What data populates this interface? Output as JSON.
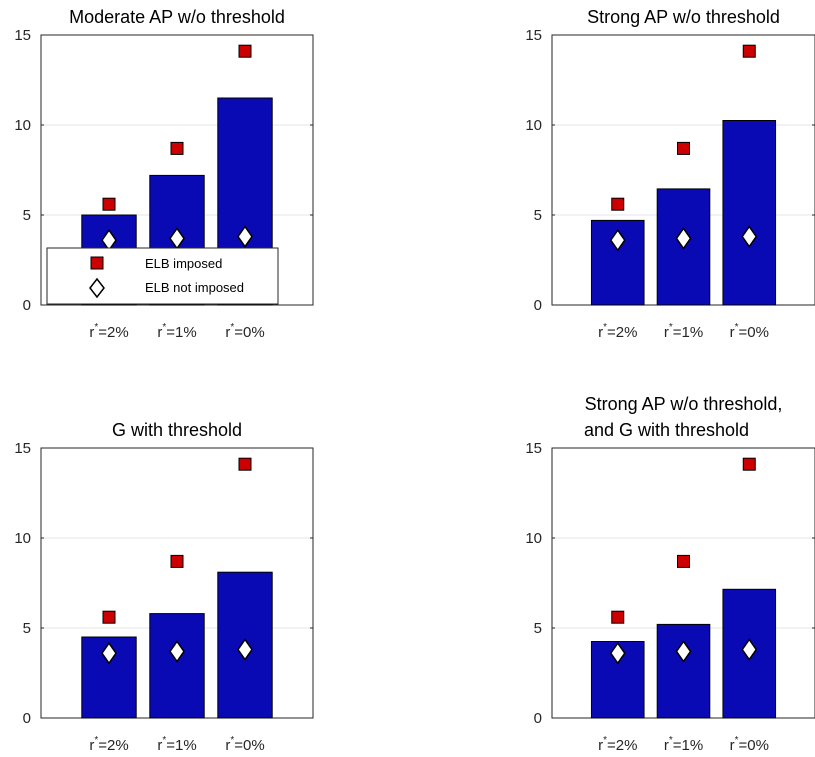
{
  "colors": {
    "bar_fill": "#0a0ab4",
    "bar_edge": "#000000",
    "square_fill": "#cc0000",
    "diamond_fill": "#ffffff",
    "grid": "#e6e6e6",
    "axis": "#262626"
  },
  "legend": {
    "items": [
      "ELB imposed",
      "ELB not imposed"
    ],
    "placement": "bottom-left of top-left panel"
  },
  "chart_data": [
    {
      "type": "bar",
      "title": "Moderate AP w/o threshold",
      "title_line2": "",
      "categories": [
        "r*=2%",
        "r*=1%",
        "r*=0%"
      ],
      "values": [
        5.0,
        7.2,
        11.5
      ],
      "markers": {
        "ELB imposed": [
          5.6,
          8.7,
          14.1
        ],
        "ELB not imposed": [
          3.6,
          3.7,
          3.8
        ]
      },
      "ylim": [
        0,
        15
      ],
      "yticks": [
        "0",
        "5",
        "10",
        "15"
      ],
      "grid": true
    },
    {
      "type": "bar",
      "title": "Strong AP w/o threshold",
      "title_line2": "",
      "categories": [
        "r*=2%",
        "r*=1%",
        "r*=0%"
      ],
      "values": [
        4.7,
        6.45,
        10.25
      ],
      "markers": {
        "ELB imposed": [
          5.6,
          8.7,
          14.1
        ],
        "ELB not imposed": [
          3.6,
          3.7,
          3.8
        ]
      },
      "ylim": [
        0,
        15
      ],
      "yticks": [
        "0",
        "5",
        "10",
        "15"
      ],
      "grid": true
    },
    {
      "type": "bar",
      "title": "G with threshold",
      "title_line2": "",
      "categories": [
        "r*=2%",
        "r*=1%",
        "r*=0%"
      ],
      "values": [
        4.5,
        5.8,
        8.1
      ],
      "markers": {
        "ELB imposed": [
          5.6,
          8.7,
          14.1
        ],
        "ELB not imposed": [
          3.6,
          3.7,
          3.8
        ]
      },
      "ylim": [
        0,
        15
      ],
      "yticks": [
        "0",
        "5",
        "10",
        "15"
      ],
      "grid": true
    },
    {
      "type": "bar",
      "title": "Strong AP w/o threshold,",
      "title_line2": "and G with threshold",
      "categories": [
        "r*=2%",
        "r*=1%",
        "r*=0%"
      ],
      "values": [
        4.25,
        5.2,
        7.15
      ],
      "markers": {
        "ELB imposed": [
          5.6,
          8.7,
          14.1
        ],
        "ELB not imposed": [
          3.6,
          3.7,
          3.8
        ]
      },
      "ylim": [
        0,
        15
      ],
      "yticks": [
        "0",
        "5",
        "10",
        "15"
      ],
      "grid": true
    }
  ]
}
